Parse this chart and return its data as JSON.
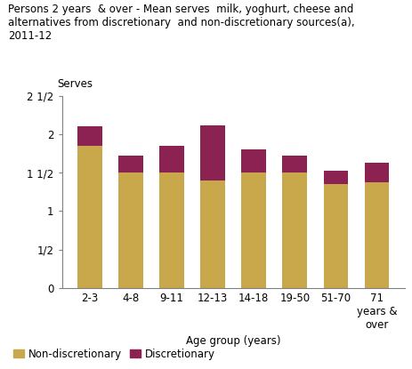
{
  "title_line1": "Persons 2 years  & over - Mean serves  milk, yoghurt, cheese and",
  "title_line2": "alternatives from discretionary  and non-discretionary sources(a),",
  "title_line3": "2011-12",
  "ylabel": "Serves",
  "xlabel": "Age group (years)",
  "categories": [
    "2-3",
    "4-8",
    "9-11",
    "12-13",
    "14-18",
    "19-50",
    "51-70",
    "71\nyears &\nover"
  ],
  "non_discretionary": [
    1.85,
    1.5,
    1.5,
    1.4,
    1.5,
    1.5,
    1.35,
    1.38
  ],
  "discretionary": [
    0.25,
    0.22,
    0.35,
    0.72,
    0.3,
    0.22,
    0.17,
    0.25
  ],
  "non_disc_color": "#C9A84C",
  "disc_color": "#8B2252",
  "ylim": [
    0,
    2.5
  ],
  "yticks": [
    0,
    0.5,
    1.0,
    1.5,
    2.0,
    2.5
  ],
  "ytick_labels": [
    "0",
    "1/2",
    "1",
    "1 1/2",
    "2",
    "2 1/2"
  ],
  "legend_nd": "Non-discretionary",
  "legend_d": "Discretionary",
  "bg_color": "#ffffff",
  "bar_width": 0.6,
  "title_fontsize": 8.5,
  "axis_fontsize": 8.5,
  "tick_fontsize": 8.5
}
